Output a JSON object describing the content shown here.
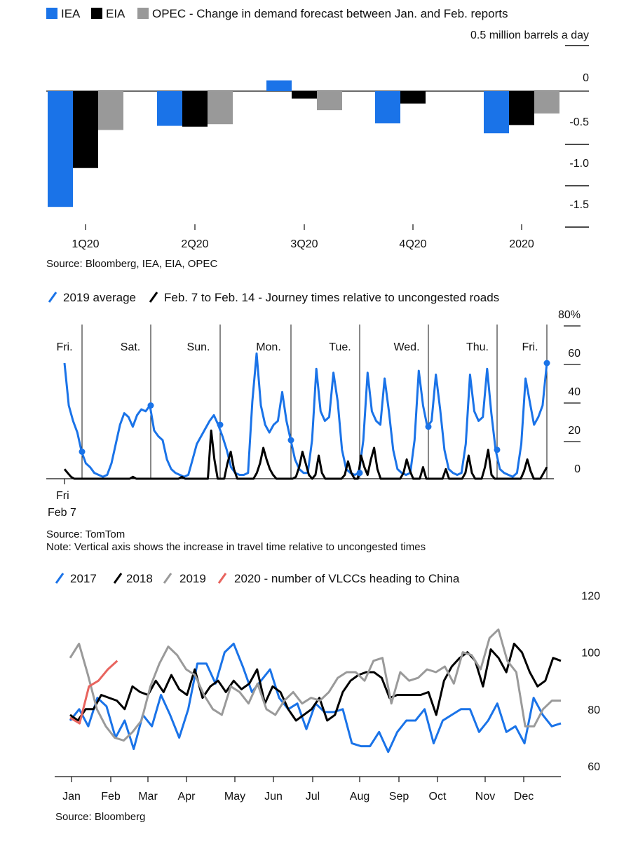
{
  "colors": {
    "iea": "#1a73e8",
    "eia": "#000000",
    "opec": "#999999",
    "y2017": "#1a73e8",
    "y2018": "#000000",
    "y2019": "#9a9a9a",
    "y2020": "#e8645e",
    "avg2019": "#1a73e8",
    "feb": "#000000"
  },
  "chart_data": [
    {
      "type": "bar",
      "title": "Change in demand forecast between Jan. and Feb. reports",
      "unit_label": "0.5 million barrels a day",
      "categories": [
        "1Q20",
        "2Q20",
        "3Q20",
        "4Q20",
        "2020"
      ],
      "series": [
        {
          "name": "IEA",
          "values": [
            -1.4,
            -0.42,
            0.13,
            -0.39,
            -0.51
          ]
        },
        {
          "name": "EIA",
          "values": [
            -0.93,
            -0.43,
            -0.09,
            -0.15,
            -0.41
          ]
        },
        {
          "name": "OPEC",
          "values": [
            -0.47,
            -0.4,
            -0.23,
            0.0,
            -0.27
          ]
        }
      ],
      "yticks": [
        "0",
        "-0.5",
        "-1.0",
        "-1.5"
      ],
      "ylim": [
        -1.55,
        0.5
      ],
      "source": "Source: Bloomberg, IEA, EIA, OPEC"
    },
    {
      "type": "line",
      "title": "Journey times relative to uncongested roads",
      "legend": [
        "2019 average",
        "Feb. 7 to Feb. 14 - Journey times relative to uncongested roads"
      ],
      "yticks": [
        "80%",
        "60",
        "40",
        "20",
        "0"
      ],
      "ylim": [
        0,
        80
      ],
      "days": [
        "Fri.",
        "Sat.",
        "Sun.",
        "Mon.",
        "Tue.",
        "Wed.",
        "Thu.",
        "Fri."
      ],
      "xlabel_line1": "Fri",
      "xlabel_line2": "Feb 7",
      "series": [
        {
          "name": "2019 average",
          "values": [
            60,
            38,
            30,
            24,
            14,
            8,
            6,
            3,
            2,
            1,
            2,
            8,
            18,
            28,
            34,
            32,
            27,
            33,
            36,
            35,
            38,
            25,
            22,
            20,
            10,
            5,
            3,
            2,
            1,
            2,
            10,
            18,
            22,
            26,
            30,
            33,
            28,
            22,
            15,
            6,
            3,
            2,
            2,
            3,
            40,
            65,
            38,
            28,
            24,
            28,
            30,
            45,
            30,
            20,
            10,
            5,
            3,
            3,
            20,
            57,
            35,
            30,
            32,
            55,
            40,
            15,
            5,
            3,
            2,
            3,
            20,
            55,
            35,
            30,
            28,
            52,
            35,
            15,
            5,
            3,
            2,
            3,
            20,
            56,
            38,
            27,
            30,
            54,
            36,
            15,
            5,
            3,
            2,
            3,
            18,
            54,
            35,
            30,
            32,
            57,
            34,
            15,
            5,
            3,
            2,
            1,
            3,
            18,
            52,
            40,
            28,
            32,
            38,
            60
          ]
        },
        {
          "name": "Feb. 7 to Feb. 14",
          "values": [
            5,
            3,
            1,
            0,
            0,
            0,
            0,
            0,
            0,
            0,
            0,
            0,
            0,
            0,
            0,
            0,
            0,
            0,
            0,
            0,
            0,
            1,
            0,
            0,
            0,
            0,
            0,
            0,
            0,
            0,
            0,
            0,
            0,
            0,
            0,
            0,
            1,
            0,
            0,
            0,
            0,
            0,
            0,
            0,
            0,
            25,
            10,
            0,
            0,
            0,
            8,
            14,
            5,
            0,
            0,
            0,
            0,
            0,
            0,
            3,
            8,
            16,
            10,
            5,
            2,
            0,
            0,
            0,
            0,
            0,
            0,
            1,
            6,
            14,
            8,
            2,
            0,
            2,
            12,
            3,
            0,
            0,
            0,
            0,
            0,
            0,
            2,
            9,
            3,
            0,
            0,
            12,
            6,
            2,
            10,
            16,
            5,
            0,
            0,
            0,
            0,
            0,
            0,
            0,
            3,
            10,
            4,
            0,
            0,
            0,
            6,
            0,
            0,
            0,
            0,
            0,
            0,
            5,
            0,
            0,
            0,
            0,
            0,
            3,
            12,
            3,
            0,
            0,
            0,
            6,
            15,
            2,
            0,
            0,
            0,
            0,
            0,
            0,
            0,
            0,
            0,
            4,
            10,
            4,
            0,
            0,
            0,
            3,
            6
          ]
        }
      ],
      "source": "Source: TomTom",
      "note": "Note: Vertical axis shows the increase in travel time relative to uncongested times"
    },
    {
      "type": "line",
      "title": "number of VLCCs heading to China",
      "legend": [
        "2017",
        "2018",
        "2019",
        "2020 - number of VLCCs heading to China"
      ],
      "months": [
        "Jan",
        "Feb",
        "Mar",
        "Apr",
        "May",
        "Jun",
        "Jul",
        "Aug",
        "Sep",
        "Oct",
        "Nov",
        "Dec"
      ],
      "yticks": [
        "120",
        "100",
        "80",
        "60"
      ],
      "ylim": [
        55,
        120
      ],
      "x_weeks": 52,
      "series": [
        {
          "name": "2017",
          "values": [
            76,
            80,
            74,
            84,
            81,
            70,
            76,
            66,
            78,
            74,
            85,
            78,
            70,
            80,
            96,
            96,
            89,
            100,
            103,
            95,
            86,
            90,
            94,
            84,
            80,
            82,
            73,
            82,
            79,
            79,
            80,
            68,
            67,
            67,
            72,
            65,
            72,
            76,
            76,
            80,
            68,
            76,
            78,
            80,
            80,
            72,
            76,
            82,
            72,
            74,
            68,
            84,
            78,
            74,
            75
          ]
        },
        {
          "name": "2018",
          "values": [
            78,
            76,
            80,
            80,
            85,
            84,
            83,
            80,
            88,
            86,
            85,
            90,
            86,
            92,
            87,
            85,
            94,
            84,
            88,
            90,
            86,
            90,
            87,
            89,
            94,
            82,
            88,
            86,
            80,
            76,
            78,
            80,
            84,
            76,
            78,
            86,
            90,
            92,
            93,
            93,
            91,
            84,
            85,
            85,
            85,
            85,
            86,
            78,
            90,
            95,
            98,
            100,
            97,
            88,
            101,
            98,
            93,
            103,
            100,
            93,
            88,
            90,
            98,
            97
          ]
        },
        {
          "name": "2019",
          "values": [
            98,
            103,
            92,
            80,
            74,
            70,
            69,
            72,
            76,
            88,
            96,
            102,
            99,
            94,
            92,
            85,
            80,
            78,
            88,
            86,
            82,
            89,
            80,
            78,
            83,
            86,
            82,
            84,
            83,
            86,
            91,
            93,
            93,
            90,
            97,
            98,
            82,
            93,
            90,
            91,
            94,
            93,
            95,
            89,
            100,
            99,
            94,
            105,
            108,
            97,
            93,
            74,
            74,
            80,
            83,
            83
          ]
        },
        {
          "name": "2020",
          "values": [
            77,
            75,
            88,
            90,
            94,
            97
          ]
        }
      ],
      "source": "Source: Bloomberg"
    }
  ]
}
